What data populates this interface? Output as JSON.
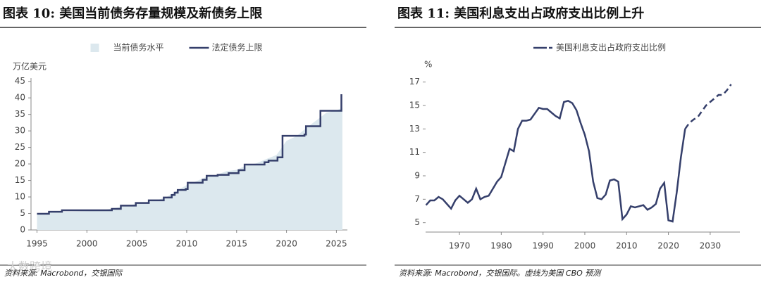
{
  "watermark": "大数跨境",
  "chart_data": [
    {
      "type": "area",
      "title": "图表 10: 美国当前债务存量规模及新债务上限",
      "y_label": "万亿美元",
      "source": "资料来源: Macrobond，交银国际",
      "xlim": [
        1994.4,
        2026.1
      ],
      "xticks": [
        1995,
        2000,
        2005,
        2010,
        2015,
        2020,
        2025
      ],
      "ylim": [
        0,
        46
      ],
      "yticks": [
        0,
        5,
        10,
        15,
        20,
        25,
        30,
        35,
        40,
        45
      ],
      "series": [
        {
          "name": "当前债务水平",
          "color": "#dce8ee",
          "kind": "area",
          "x": [
            1995,
            1996,
            1997,
            1998,
            1999,
            2000,
            2001,
            2002,
            2003,
            2004,
            2005,
            2006,
            2007,
            2008,
            2009,
            2010,
            2011,
            2012,
            2013,
            2014,
            2015,
            2016,
            2017,
            2018,
            2019,
            2020,
            2021,
            2022,
            2023,
            2024,
            2025,
            2025.6
          ],
          "values": [
            4.9,
            5.2,
            5.4,
            5.5,
            5.6,
            5.7,
            5.8,
            6.2,
            6.8,
            7.4,
            7.9,
            8.5,
            9.0,
            10.0,
            11.9,
            13.6,
            14.8,
            16.1,
            16.7,
            17.8,
            18.2,
            19.6,
            20.2,
            21.5,
            22.7,
            27.0,
            28.4,
            30.9,
            33.2,
            35.5,
            36.2,
            37.0
          ]
        },
        {
          "name": "法定债务上限",
          "color": "#353f6b",
          "kind": "step",
          "x": [
            1995,
            1996.2,
            1997.5,
            2002.5,
            2003.4,
            2004.9,
            2006.2,
            2007.7,
            2008.5,
            2008.8,
            2009.1,
            2009.9,
            2010.1,
            2011.6,
            2012.0,
            2013.1,
            2014.2,
            2015.2,
            2015.8,
            2017.8,
            2018.2,
            2019.1,
            2019.6,
            2021.8,
            2021.95,
            2023.4,
            2025.5
          ],
          "values": [
            4.9,
            5.5,
            5.95,
            6.4,
            7.38,
            8.18,
            8.97,
            9.82,
            10.6,
            11.3,
            12.1,
            12.4,
            14.3,
            15.2,
            16.4,
            16.7,
            17.2,
            18.1,
            19.8,
            20.5,
            21.0,
            22.0,
            28.5,
            28.9,
            31.4,
            36.1,
            41.1
          ]
        }
      ]
    },
    {
      "type": "line",
      "title": "图表 11: 美国利息支出占政府支出比例上升",
      "y_label": "%",
      "source": "资料来源: Macrobond，交银国际。虚线为美国 CBO 预测",
      "xlim": [
        1961.9,
        2037.1
      ],
      "xticks": [
        1970,
        1980,
        1990,
        2000,
        2010,
        2020,
        2030
      ],
      "ylim": [
        4.2,
        18
      ],
      "yticks": [
        5,
        7,
        9,
        11,
        13,
        15,
        17
      ],
      "series": [
        {
          "name": "美国利息支出占政府支出比例",
          "color": "#353f6b",
          "dash": false,
          "x": [
            1962,
            1963,
            1964,
            1965,
            1966,
            1967,
            1968,
            1969,
            1970,
            1971,
            1972,
            1973,
            1974,
            1975,
            1976,
            1977,
            1978,
            1979,
            1980,
            1981,
            1982,
            1983,
            1984,
            1985,
            1986,
            1987,
            1988,
            1989,
            1990,
            1991,
            1992,
            1993,
            1994,
            1995,
            1996,
            1997,
            1998,
            1999,
            2000,
            2001,
            2002,
            2003,
            2004,
            2005,
            2006,
            2007,
            2008,
            2009,
            2010,
            2011,
            2012,
            2013,
            2014,
            2015,
            2016,
            2017,
            2018,
            2019,
            2020,
            2021,
            2022,
            2023,
            2024
          ],
          "values": [
            6.5,
            6.9,
            6.9,
            7.2,
            7.0,
            6.6,
            6.2,
            6.9,
            7.3,
            7.0,
            6.7,
            7.0,
            7.9,
            7.0,
            7.2,
            7.3,
            7.9,
            8.5,
            8.9,
            10.1,
            11.3,
            11.1,
            13.0,
            13.7,
            13.7,
            13.8,
            14.3,
            14.8,
            14.7,
            14.7,
            14.4,
            14.1,
            13.9,
            15.3,
            15.4,
            15.2,
            14.6,
            13.5,
            12.5,
            11.1,
            8.5,
            7.1,
            7.0,
            7.4,
            8.6,
            8.7,
            8.5,
            5.3,
            5.7,
            6.4,
            6.3,
            6.4,
            6.5,
            6.1,
            6.3,
            6.6,
            7.9,
            8.4,
            5.2,
            5.1,
            7.6,
            10.6,
            13.0
          ]
        },
        {
          "color": "#353f6b",
          "dash": true,
          "x": [
            2024,
            2025,
            2026,
            2027,
            2028,
            2029,
            2030,
            2031,
            2032,
            2033,
            2034,
            2035
          ],
          "values": [
            13.0,
            13.5,
            13.8,
            14.0,
            14.5,
            15.0,
            15.3,
            15.6,
            15.9,
            15.9,
            16.3,
            16.8
          ]
        }
      ]
    }
  ]
}
